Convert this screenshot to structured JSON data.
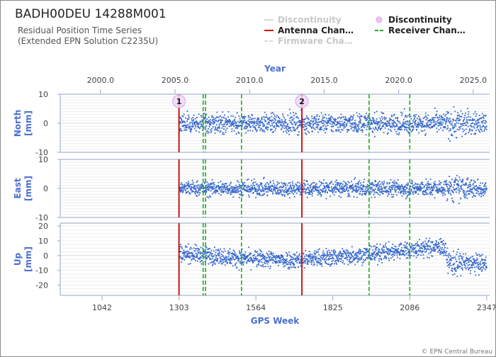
{
  "header": {
    "title": "BADH00DEU 14288M001",
    "subtitle_line1": "Residual Position Time Series",
    "subtitle_line2": "(Extended EPN Solution C2235U)"
  },
  "legend": [
    {
      "label": "Discontinuity",
      "style": "line",
      "color": "#d9d9d9",
      "dim": true
    },
    {
      "label": "Discontinuity",
      "style": "circle",
      "color": "#e8c6f0",
      "dim": false
    },
    {
      "label": "Antenna Chan…",
      "style": "line",
      "color": "#cc0000",
      "dim": false
    },
    {
      "label": "Receiver Chan…",
      "style": "dash",
      "color": "#22aa22",
      "dim": false
    },
    {
      "label": "Firmware Cha…",
      "style": "dash",
      "color": "#d9d9d9",
      "dim": true
    }
  ],
  "credit": "© EPN Central Bureau",
  "chart_data": {
    "type": "scatter",
    "x_top": {
      "label": "Year",
      "ticks": [
        "2000.0",
        "2005.0",
        "2010.0",
        "2015.0",
        "2020.0",
        "2025.0"
      ],
      "range": [
        1997.3,
        2026.1
      ]
    },
    "x_bottom": {
      "label": "GPS Week",
      "ticks": [
        "1042",
        "1303",
        "1564",
        "1825",
        "2086",
        "2347"
      ],
      "range": [
        900,
        2357
      ]
    },
    "data_range_weeks": [
      1303,
      2347
    ],
    "grid": true,
    "color": "#3366cc",
    "series": [
      {
        "name": "North",
        "ylabel_lines": [
          "North",
          "[mm]"
        ],
        "ylim": [
          -10,
          10
        ],
        "ticks": [
          "10",
          "0",
          "-10"
        ],
        "noise": [
          [
            1303,
            2.2
          ],
          [
            2200,
            2.4
          ],
          [
            2230,
            3.8
          ],
          [
            2347,
            2.2
          ]
        ],
        "offsets": [
          [
            1303,
            0
          ],
          [
            2347,
            0
          ]
        ]
      },
      {
        "name": "East",
        "ylabel_lines": [
          "East",
          "[mm]"
        ],
        "ylim": [
          -10,
          10
        ],
        "ticks": [
          "10",
          "0",
          "-10"
        ],
        "noise": [
          [
            1303,
            1.8
          ],
          [
            2200,
            2.0
          ],
          [
            2230,
            3.2
          ],
          [
            2347,
            2.0
          ]
        ],
        "offsets": [
          [
            1303,
            0
          ],
          [
            2347,
            0
          ]
        ]
      },
      {
        "name": "Up",
        "ylabel_lines": [
          "Up",
          "[mm]"
        ],
        "ylim": [
          -27,
          22
        ],
        "ticks": [
          "20",
          "10",
          "0",
          "-10",
          "-20"
        ],
        "noise": [
          [
            1303,
            4.0
          ],
          [
            2200,
            4.2
          ],
          [
            2240,
            6.0
          ],
          [
            2347,
            4.0
          ]
        ],
        "offsets": [
          [
            1303,
            2
          ],
          [
            1420,
            0
          ],
          [
            1520,
            -2
          ],
          [
            1700,
            -3
          ],
          [
            1825,
            -1
          ],
          [
            1950,
            1
          ],
          [
            2086,
            4
          ],
          [
            2200,
            6
          ],
          [
            2220,
            -5
          ],
          [
            2347,
            -6
          ]
        ]
      }
    ],
    "discontinuities": [
      {
        "label": "1",
        "week": 1303
      },
      {
        "label": "2",
        "week": 1720
      }
    ],
    "antenna_changes": [
      1303,
      1720
    ],
    "receiver_changes": [
      1303,
      1385,
      1393,
      1515,
      1948,
      2086
    ]
  }
}
